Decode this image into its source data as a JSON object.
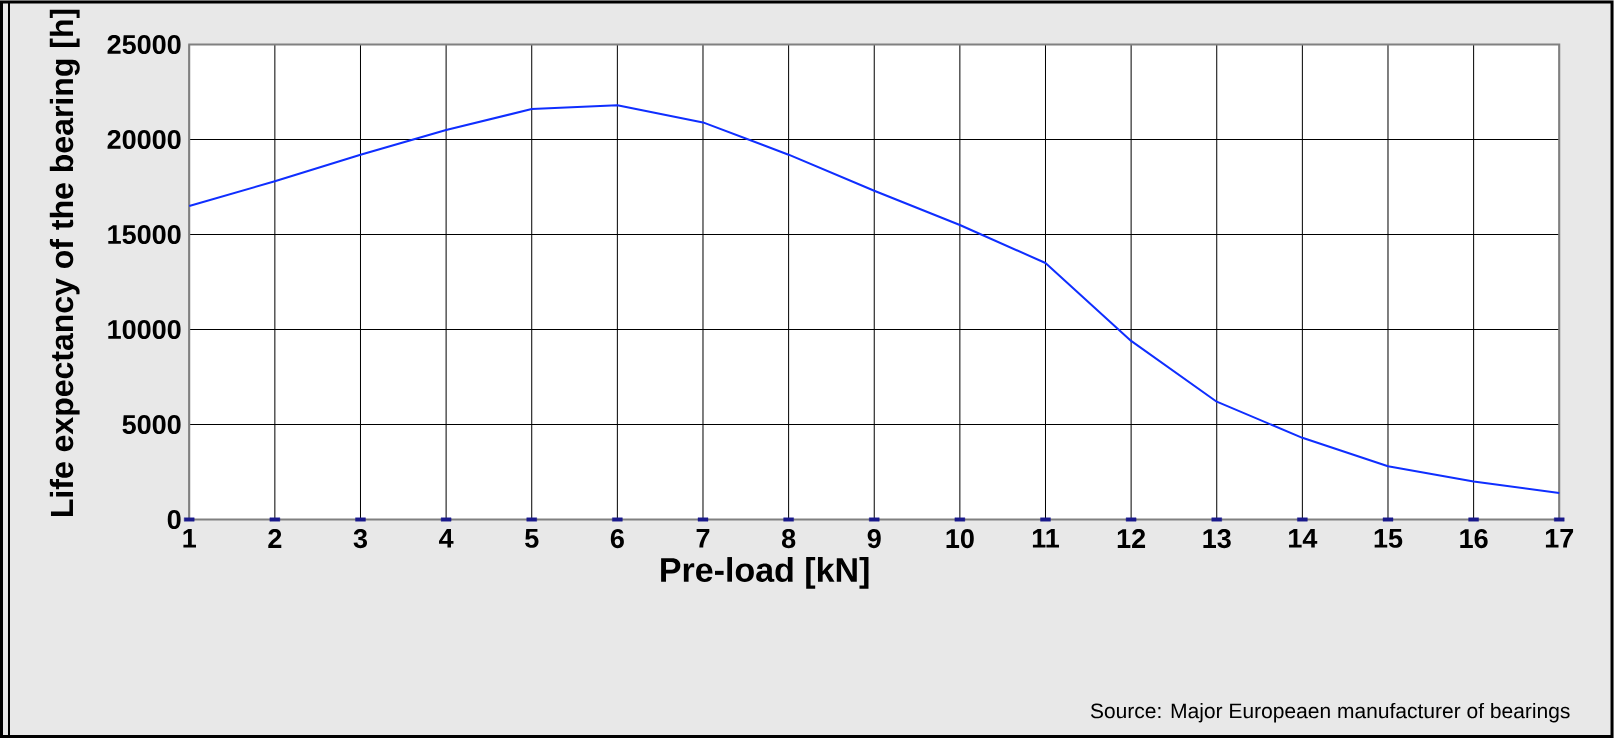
{
  "chart_data": {
    "type": "line",
    "xlabel": "Pre-load [kN]",
    "ylabel": "Life expectancy of the bearing [h]",
    "annotations": [
      "Source: Major  Europeaen manufacturer of bearings"
    ],
    "x": [
      1,
      2,
      3,
      4,
      5,
      6,
      7,
      8,
      9,
      10,
      11,
      12,
      13,
      14,
      15,
      16,
      17
    ],
    "series": [
      {
        "color": "#0f2eff",
        "values": [
          16500,
          17800,
          19200,
          20500,
          21600,
          21800,
          20900,
          19200,
          17300,
          15500,
          13500,
          9400,
          6200,
          4300,
          2800,
          2000,
          1400
        ]
      },
      {
        "type": "scatter",
        "color": "#1a1a8c",
        "values": [
          0,
          0,
          0,
          0,
          0,
          0,
          0,
          0,
          0,
          0,
          0,
          0,
          0,
          0,
          0,
          0,
          0
        ]
      }
    ],
    "xlim": [
      1,
      17
    ],
    "ylim": [
      0,
      25000
    ],
    "xticks": [
      1,
      2,
      3,
      4,
      5,
      6,
      7,
      8,
      9,
      10,
      11,
      12,
      13,
      14,
      15,
      16,
      17
    ],
    "yticks": [
      0,
      5000,
      10000,
      15000,
      20000,
      25000
    ],
    "grid": true
  }
}
